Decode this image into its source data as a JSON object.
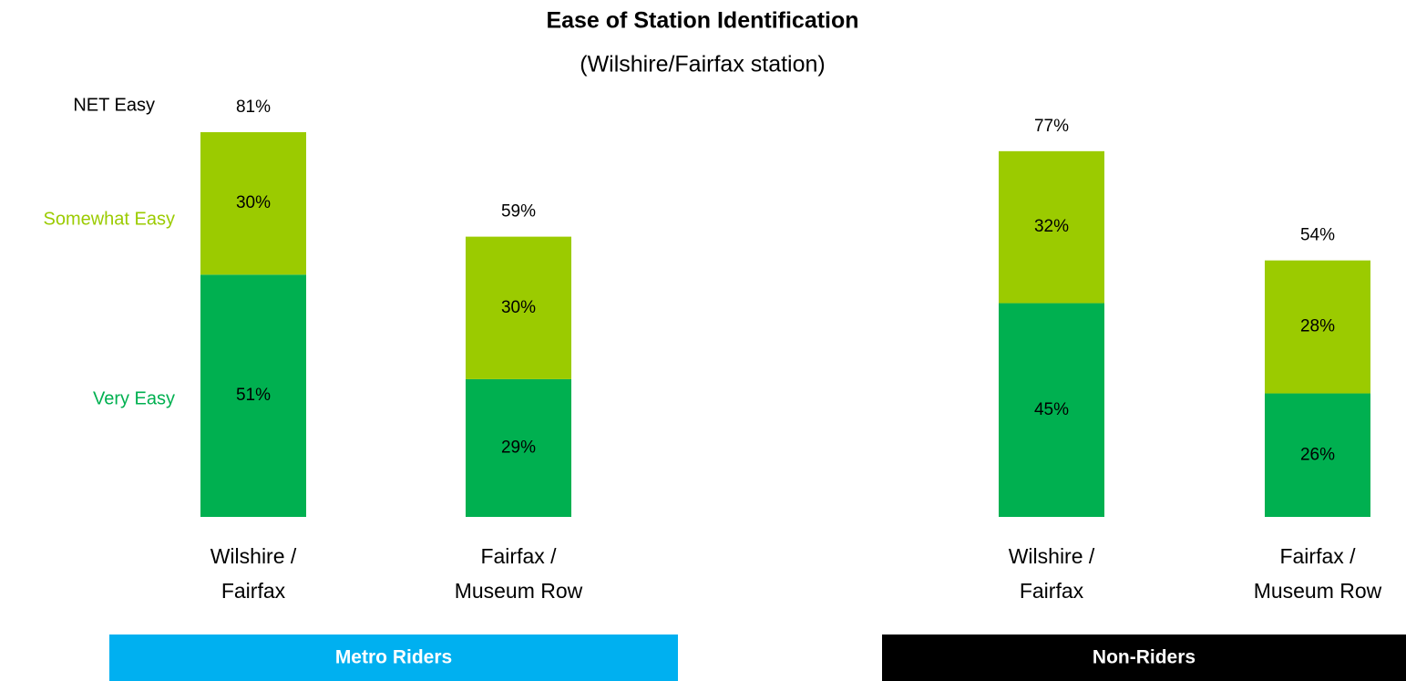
{
  "title": "Ease of Station Identification",
  "subtitle": "(Wilshire/Fairfax station)",
  "chart_data": {
    "type": "bar",
    "stacked": true,
    "categories": [
      [
        "Wilshire /",
        "Fairfax"
      ],
      [
        "Fairfax /",
        "Museum Row"
      ],
      [
        "Wilshire /",
        "Fairfax"
      ],
      [
        "Fairfax /",
        "Museum Row"
      ]
    ],
    "series": [
      {
        "name": "Very Easy",
        "color": "#00b050",
        "values": [
          51,
          29,
          45,
          26
        ],
        "value_labels": [
          "51%",
          "29%",
          "45%",
          "26%"
        ]
      },
      {
        "name": "Somewhat Easy",
        "color": "#9bcb00",
        "values": [
          30,
          30,
          32,
          28
        ],
        "value_labels": [
          "30%",
          "30%",
          "32%",
          "28%"
        ]
      }
    ],
    "totals": {
      "name": "NET Easy",
      "values": [
        81,
        59,
        77,
        54
      ],
      "value_labels": [
        "81%",
        "59%",
        "77%",
        "54%"
      ]
    },
    "groups": [
      {
        "name": "Metro Riders",
        "color": "#00b0f0",
        "size": 2
      },
      {
        "name": "Non-Riders",
        "color": "#000000",
        "size": 2
      }
    ]
  }
}
